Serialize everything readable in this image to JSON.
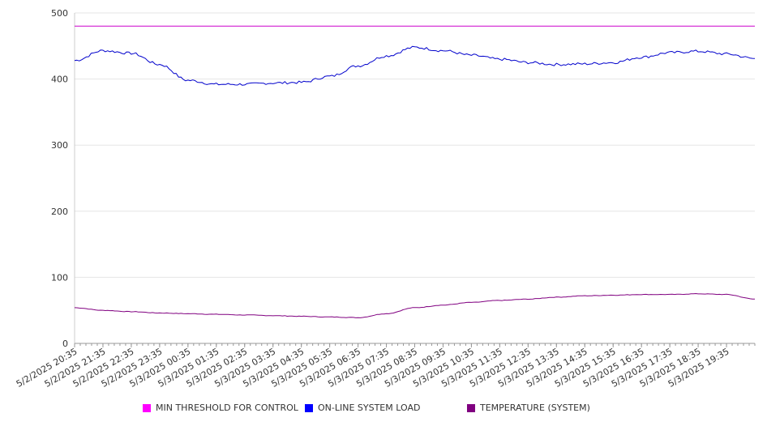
{
  "chart_data": {
    "type": "line",
    "title": "",
    "xlabel": "",
    "ylabel": "",
    "ylim": [
      0,
      500
    ],
    "yticks": [
      0,
      100,
      200,
      300,
      400,
      500
    ],
    "grid": true,
    "legend_position": "bottom",
    "x_tick_labels": [
      "5/2/2025 20:35",
      "5/2/2025 21:35",
      "5/2/2025 22:35",
      "5/2/2025 23:35",
      "5/3/2025 00:35",
      "5/3/2025 01:35",
      "5/3/2025 02:35",
      "5/3/2025 03:35",
      "5/3/2025 04:35",
      "5/3/2025 05:35",
      "5/3/2025 06:35",
      "5/3/2025 07:35",
      "5/3/2025 08:35",
      "5/3/2025 09:35",
      "5/3/2025 10:35",
      "5/3/2025 11:35",
      "5/3/2025 12:35",
      "5/3/2025 13:35",
      "5/3/2025 14:35",
      "5/3/2025 15:35",
      "5/3/2025 16:35",
      "5/3/2025 17:35",
      "5/3/2025 18:35",
      "5/3/2025 19:35"
    ],
    "x": [
      "5/2/2025 20:35",
      "5/2/2025 21:35",
      "5/2/2025 22:35",
      "5/2/2025 23:35",
      "5/3/2025 00:35",
      "5/3/2025 01:35",
      "5/3/2025 02:35",
      "5/3/2025 03:35",
      "5/3/2025 04:35",
      "5/3/2025 05:35",
      "5/3/2025 06:35",
      "5/3/2025 07:35",
      "5/3/2025 08:35",
      "5/3/2025 09:35",
      "5/3/2025 10:35",
      "5/3/2025 11:35",
      "5/3/2025 12:35",
      "5/3/2025 13:35",
      "5/3/2025 14:35",
      "5/3/2025 15:35",
      "5/3/2025 16:35",
      "5/3/2025 17:35",
      "5/3/2025 18:35",
      "5/3/2025 19:35",
      "5/3/2025 20:35"
    ],
    "series": [
      {
        "name": "MIN THRESHOLD FOR CONTROL",
        "color": "#cc00cc",
        "values": [
          480,
          480,
          480,
          480,
          480,
          480,
          480,
          480,
          480,
          480,
          480,
          480,
          480,
          480,
          480,
          480,
          480,
          480,
          480,
          480,
          480,
          480,
          480,
          480,
          480
        ]
      },
      {
        "name": "ON-LINE SYSTEM LOAD",
        "color": "#0000cc",
        "values": [
          428,
          443,
          439,
          422,
          398,
          392,
          392,
          394,
          395,
          404,
          420,
          435,
          448,
          443,
          436,
          430,
          425,
          422,
          423,
          425,
          433,
          440,
          442,
          438,
          431
        ]
      },
      {
        "name": "TEMPERATURE (SYSTEM)",
        "color": "#800080",
        "values": [
          54,
          50,
          48,
          46,
          45,
          44,
          43,
          42,
          41,
          40,
          39,
          45,
          54,
          58,
          62,
          65,
          67,
          70,
          72,
          73,
          74,
          74,
          75,
          74,
          67
        ]
      }
    ]
  }
}
